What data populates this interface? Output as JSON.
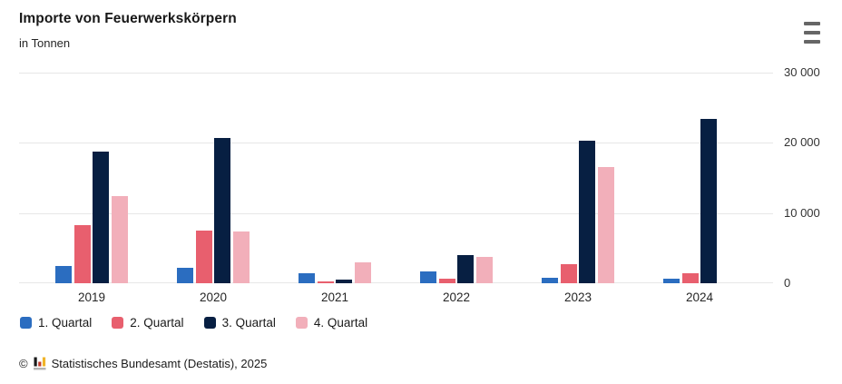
{
  "header": {
    "title": "Importe von Feuerwerkskörpern",
    "subtitle": "in Tonnen",
    "menu_icon": "hamburger-menu-icon"
  },
  "chart_data": {
    "type": "bar",
    "title": "Importe von Feuerwerkskörpern",
    "subtitle": "in Tonnen",
    "unit": "Tonnen",
    "categories": [
      "2019",
      "2020",
      "2021",
      "2022",
      "2023",
      "2024"
    ],
    "series": [
      {
        "name": "1. Quartal",
        "color": "#2b6dc0",
        "values": [
          2500,
          2200,
          1400,
          1650,
          800,
          650
        ]
      },
      {
        "name": "2. Quartal",
        "color": "#e85f6e",
        "values": [
          8300,
          7500,
          270,
          700,
          2700,
          1450
        ]
      },
      {
        "name": "3. Quartal",
        "color": "#071f42",
        "values": [
          18700,
          20700,
          580,
          4050,
          20300,
          23400
        ]
      },
      {
        "name": "4. Quartal",
        "color": "#f2afba",
        "values": [
          12400,
          7400,
          3000,
          3750,
          16600,
          null
        ]
      }
    ],
    "ylim": [
      0,
      30000
    ],
    "yticks": [
      0,
      10000,
      20000,
      30000
    ],
    "ytick_labels": [
      "0",
      "10 000",
      "20 000",
      "30 000"
    ],
    "grid": true,
    "gridline_color": "#e7e7e7",
    "legend_position": "bottom",
    "y_axis_side": "right"
  },
  "footer": {
    "copyright": "©",
    "source": "Statistisches Bundesamt (Destatis), 2025",
    "logo_icon": "destatis-bar-chart-icon",
    "logo_colors": {
      "bar1": "#1a1a1a",
      "bar2": "#c03a2b",
      "bar3": "#f0b429",
      "base": "#b3b3b3"
    }
  }
}
